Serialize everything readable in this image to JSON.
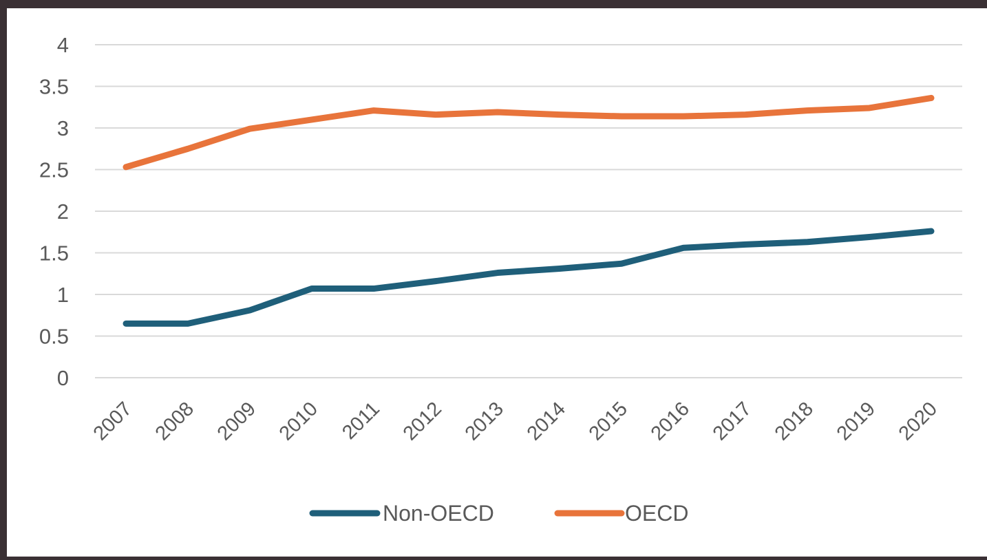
{
  "chart_data": {
    "type": "line",
    "x": [
      "2007",
      "2008",
      "2009",
      "2010",
      "2011",
      "2012",
      "2013",
      "2014",
      "2015",
      "2016",
      "2017",
      "2018",
      "2019",
      "2020"
    ],
    "series": [
      {
        "name": "Non-OECD",
        "color": "#1f5f7a",
        "values": [
          0.65,
          0.65,
          0.81,
          1.07,
          1.07,
          1.16,
          1.26,
          1.31,
          1.37,
          1.56,
          1.6,
          1.63,
          1.69,
          1.76
        ]
      },
      {
        "name": "OECD",
        "color": "#e8743b",
        "values": [
          2.53,
          2.75,
          2.99,
          3.1,
          3.21,
          3.16,
          3.19,
          3.16,
          3.14,
          3.14,
          3.16,
          3.21,
          3.24,
          3.36
        ]
      }
    ],
    "y_ticks": [
      "0",
      "0.5",
      "1",
      "1.5",
      "2",
      "2.5",
      "3",
      "3.5",
      "4"
    ],
    "ylim": [
      0,
      4
    ],
    "grid": true,
    "legend_position": "bottom",
    "title": "",
    "xlabel": "",
    "ylabel": ""
  },
  "colors": {
    "gridline": "#d9d9d9",
    "tick_text": "#595959",
    "background": "#ffffff"
  }
}
